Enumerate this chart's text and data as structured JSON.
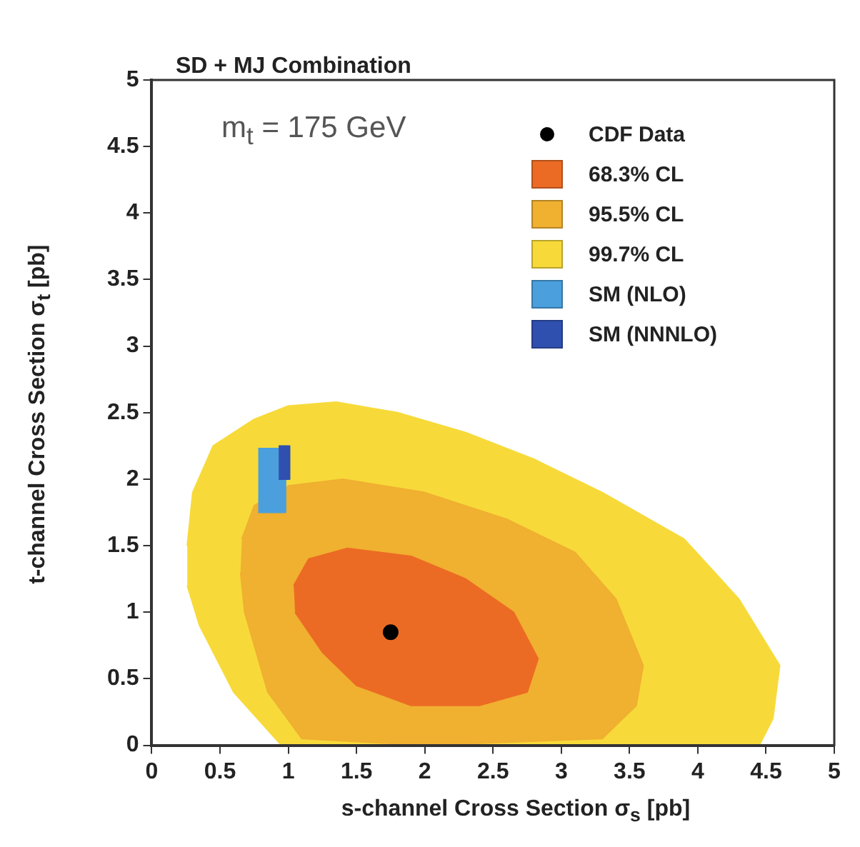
{
  "chart_data": {
    "type": "area",
    "title": "SD + MJ Combination",
    "xlabel": "s-channel Cross Section σ$_{s}$ [pb]",
    "ylabel": "t-channel Cross Section σ$_{t}$ [pb]",
    "annotations": [
      "m$_{t}$ = 175 GeV"
    ],
    "xlim": [
      0,
      5
    ],
    "xticks": [
      0,
      0.5,
      1,
      1.5,
      2,
      2.5,
      3,
      3.5,
      4,
      4.5,
      5
    ],
    "ylim": [
      0,
      5
    ],
    "yticks": [
      0,
      0.5,
      1,
      1.5,
      2,
      2.5,
      3,
      3.5,
      4,
      4.5,
      5
    ],
    "grid": false,
    "legend": "top right",
    "series": [
      {
        "name": "CDF Data",
        "type": "scatter",
        "marker": "circle",
        "color": "#000000",
        "x": [
          1.75
        ],
        "values": [
          0.85
        ]
      },
      {
        "name": "68.3% CL",
        "color": "#ec6b24",
        "x": [
          1.04,
          1.15,
          1.43,
          1.9,
          2.3,
          2.65,
          2.83,
          2.75,
          2.4,
          1.9,
          1.5,
          1.25,
          1.05
        ],
        "values": [
          1.2,
          1.4,
          1.48,
          1.42,
          1.25,
          1.0,
          0.65,
          0.4,
          0.3,
          0.3,
          0.45,
          0.7,
          1.0
        ]
      },
      {
        "name": "95.5% CL",
        "color": "#f0b030",
        "x": [
          0.66,
          0.75,
          1.0,
          1.4,
          2.0,
          2.6,
          3.1,
          3.4,
          3.6,
          3.55,
          3.3,
          2.0,
          1.1,
          0.85,
          0.68,
          0.65
        ],
        "values": [
          1.55,
          1.8,
          1.95,
          2.0,
          1.9,
          1.7,
          1.45,
          1.1,
          0.6,
          0.3,
          0.05,
          0,
          0.05,
          0.4,
          1.0,
          1.3
        ]
      },
      {
        "name": "99.7% CL",
        "color": "#f7da3a",
        "x": [
          0.26,
          0.3,
          0.45,
          0.75,
          1.0,
          1.35,
          1.8,
          2.3,
          2.8,
          3.3,
          3.9,
          4.3,
          4.6,
          4.55,
          4.45,
          0.95,
          0.6,
          0.35,
          0.26
        ],
        "values": [
          1.5,
          1.9,
          2.25,
          2.45,
          2.55,
          2.58,
          2.5,
          2.35,
          2.15,
          1.9,
          1.55,
          1.1,
          0.6,
          0.2,
          0,
          0,
          0.4,
          0.9,
          1.2
        ]
      },
      {
        "name": "SM (NLO)",
        "color": "#4a9fdc",
        "x": [
          0.78,
          0.98,
          0.98,
          0.78
        ],
        "values": [
          1.75,
          1.75,
          2.23,
          2.23
        ]
      },
      {
        "name": "SM (NNNLO)",
        "color": "#3050b0",
        "x": [
          0.93,
          1.01,
          1.01,
          0.93
        ],
        "values": [
          2.0,
          2.0,
          2.25,
          2.25
        ]
      }
    ]
  }
}
